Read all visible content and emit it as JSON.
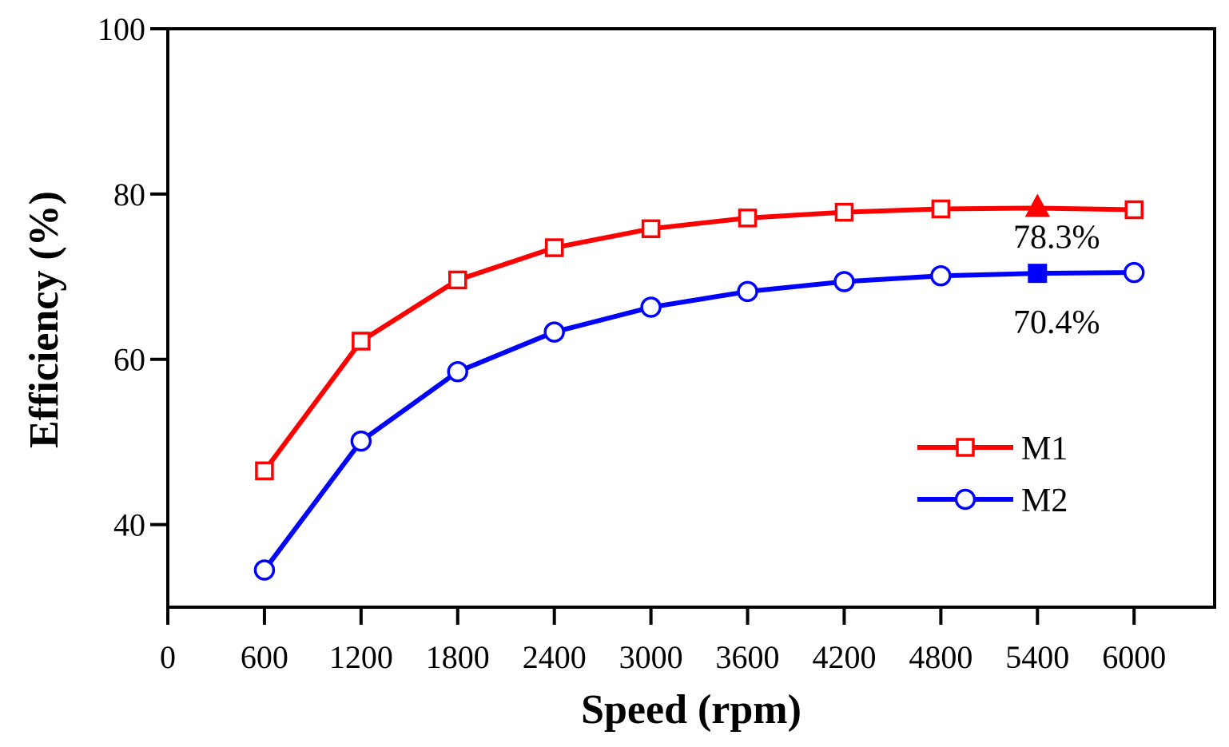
{
  "chart_data": {
    "type": "line",
    "title": "",
    "xlabel": "Speed (rpm)",
    "ylabel": "Efficiency (%)",
    "xlim": [
      0,
      6500
    ],
    "ylim": [
      30,
      100
    ],
    "xticks": [
      0,
      600,
      1200,
      1800,
      2400,
      3000,
      3600,
      4200,
      4800,
      5400,
      6000
    ],
    "xtick_labels": [
      "0",
      "600",
      "1200",
      "1800",
      "2400",
      "3000",
      "3600",
      "4200",
      "4800",
      "5400",
      "6000"
    ],
    "yticks": [
      40,
      60,
      80,
      100
    ],
    "ytick_labels": [
      "40",
      "60",
      "80",
      "100"
    ],
    "grid": false,
    "legend_position": "bottom-right",
    "x": [
      600,
      1200,
      1800,
      2400,
      3000,
      3600,
      4200,
      4800,
      5400,
      6000
    ],
    "series": [
      {
        "name": "M1",
        "color": "#ff0000",
        "marker": "square",
        "values": [
          46.5,
          62.2,
          69.6,
          73.5,
          75.8,
          77.1,
          77.8,
          78.2,
          78.3,
          78.1
        ],
        "highlight_index": 8,
        "highlight_marker": "triangle-filled"
      },
      {
        "name": "M2",
        "color": "#0000ff",
        "marker": "circle",
        "values": [
          34.5,
          50.1,
          58.5,
          63.3,
          66.3,
          68.2,
          69.4,
          70.1,
          70.4,
          70.5
        ],
        "highlight_index": 8,
        "highlight_marker": "square-filled"
      }
    ],
    "annotations": [
      {
        "text": "78.3%",
        "x": 5400,
        "y": 78.3
      },
      {
        "text": "70.4%",
        "x": 5400,
        "y": 70.4
      }
    ]
  }
}
